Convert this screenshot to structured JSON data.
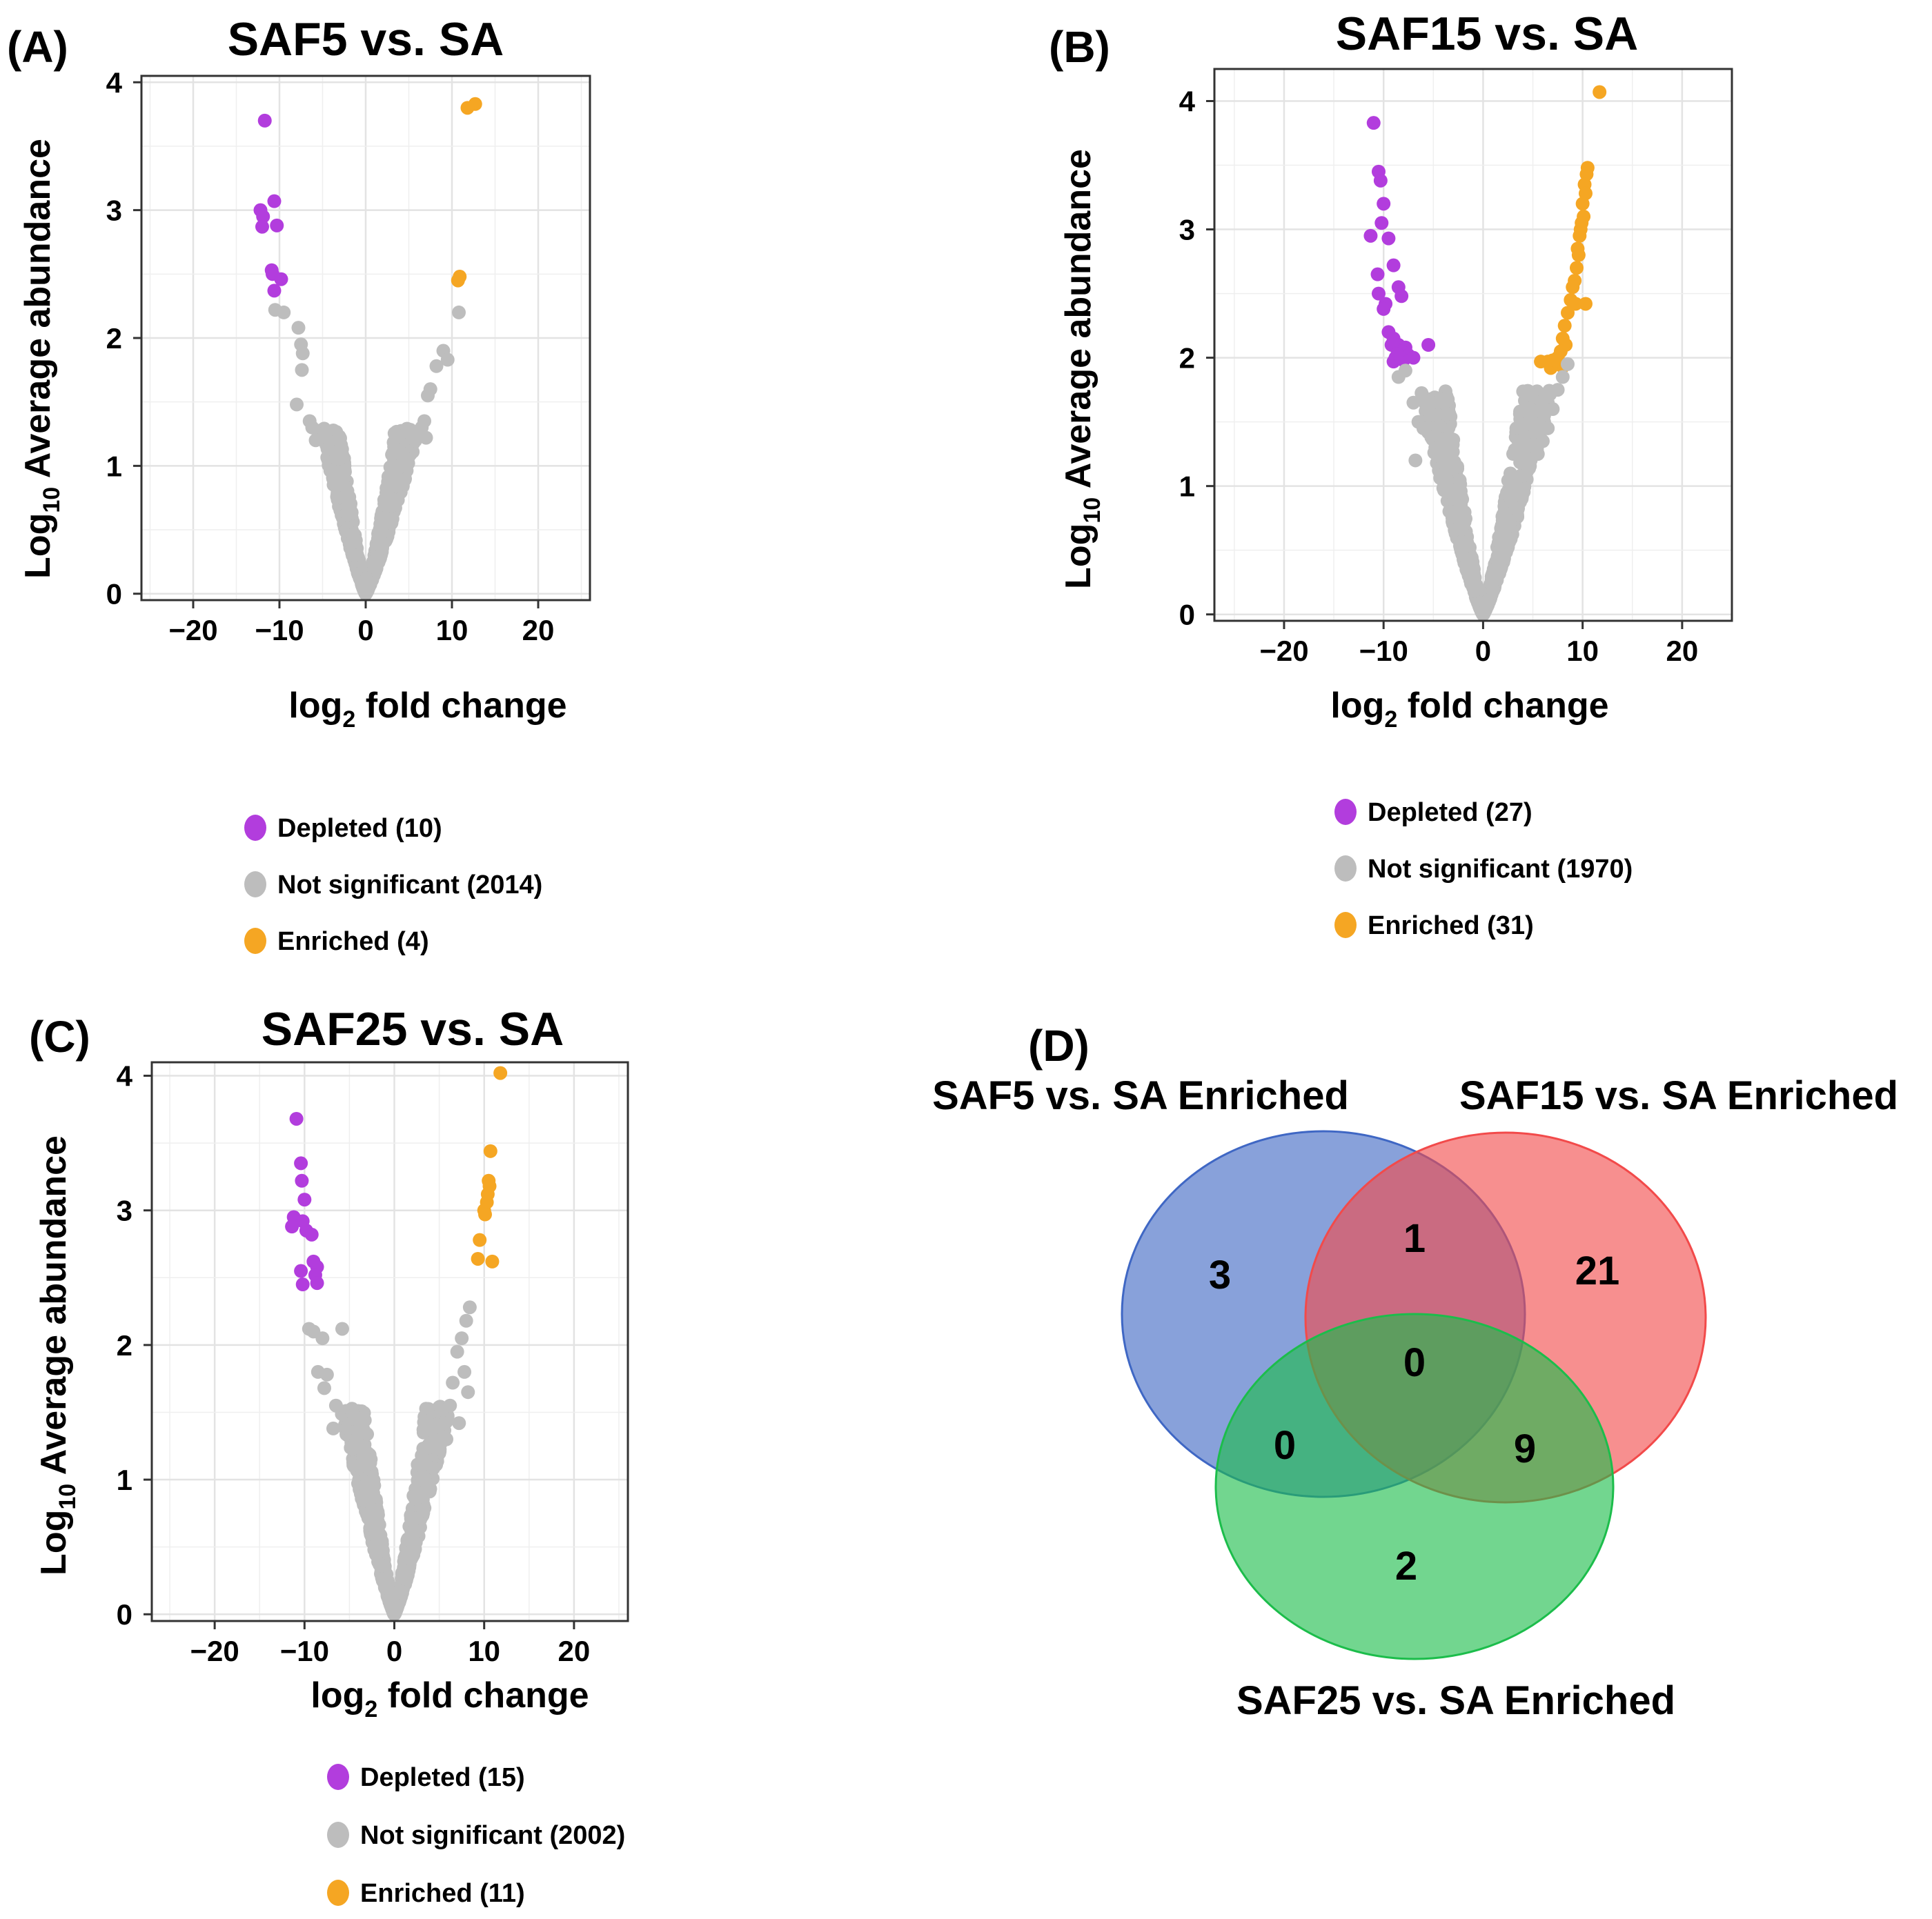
{
  "colors": {
    "depleted": "#b23ddd",
    "not_significant": "#bdbdbd",
    "enriched": "#f5a623",
    "venn_a": "#3f67c4",
    "venn_b": "#f24a4a",
    "venn_c": "#1cbd4b"
  },
  "chart_data": [
    {
      "type": "scatter",
      "panel": "(A)",
      "title": "SAF5 vs. SA",
      "xlabel": "log2 fold change",
      "ylabel": "Log10 Average abundance",
      "xlabel_parts": {
        "pre": "log",
        "sub": "2",
        "post": " fold change"
      },
      "ylabel_parts": {
        "pre": "Log",
        "sub": "10",
        "post": " Average abundance"
      },
      "xlim": [
        -26,
        26
      ],
      "ylim": [
        -0.05,
        4.05
      ],
      "xticks": [
        -20,
        -10,
        0,
        10,
        20
      ],
      "yticks": [
        0,
        1,
        2,
        3,
        4
      ],
      "xtick_labels": [
        "−20",
        "−10",
        "0",
        "10",
        "20"
      ],
      "ytick_labels": [
        "0",
        "1",
        "2",
        "3",
        "4"
      ],
      "grid": true,
      "legend": [
        {
          "label": "Depleted  (10)",
          "category": "depleted"
        },
        {
          "label": "Not significant (2014)",
          "category": "not_significant"
        },
        {
          "label": "Enriched (4)",
          "category": "enriched"
        }
      ],
      "series": [
        {
          "name": "Depleted",
          "category": "depleted",
          "x": [
            -11.7,
            -12.2,
            -11.9,
            -10.6,
            -10.3,
            -12.0,
            -10.9,
            -10.8,
            -10.6,
            -9.8
          ],
          "y": [
            3.7,
            3.0,
            2.95,
            3.07,
            2.88,
            2.87,
            2.53,
            2.5,
            2.37,
            2.46
          ]
        },
        {
          "name": "Enriched",
          "category": "enriched",
          "x": [
            12.7,
            11.8,
            10.9,
            10.7
          ],
          "y": [
            3.83,
            3.8,
            2.48,
            2.45
          ]
        },
        {
          "name": "Not significant",
          "category": "not_significant",
          "envelope": {
            "left_k": 4.3,
            "right_k": 5.0,
            "y_top": 1.3,
            "count": 2014
          },
          "x": [
            -10.5,
            -9.5,
            -7.8,
            -7.5,
            -7.3,
            -7.4,
            -8.0,
            -6.5,
            -6.2,
            -5.8,
            10.8,
            9.0,
            9.5,
            8.2,
            7.5,
            7.2,
            6.8,
            6.5,
            7.0
          ],
          "y": [
            2.22,
            2.2,
            2.08,
            1.95,
            1.88,
            1.75,
            1.48,
            1.35,
            1.3,
            1.2,
            2.2,
            1.9,
            1.83,
            1.78,
            1.6,
            1.55,
            1.35,
            1.3,
            1.22
          ]
        }
      ]
    },
    {
      "type": "scatter",
      "panel": "(B)",
      "title": "SAF15 vs. SA",
      "xlabel": "log2 fold change",
      "ylabel": "Log10 Average abundance",
      "xlabel_parts": {
        "pre": "log",
        "sub": "2",
        "post": " fold change"
      },
      "ylabel_parts": {
        "pre": "Log",
        "sub": "10",
        "post": " Average abundance"
      },
      "xlim": [
        -27,
        25
      ],
      "ylim": [
        -0.05,
        4.25
      ],
      "xticks": [
        -20,
        -10,
        0,
        10,
        20
      ],
      "yticks": [
        0,
        1,
        2,
        3,
        4
      ],
      "xtick_labels": [
        "−20",
        "−10",
        "0",
        "10",
        "20"
      ],
      "ytick_labels": [
        "0",
        "1",
        "2",
        "3",
        "4"
      ],
      "grid": true,
      "legend": [
        {
          "label": "Depleted  (27)",
          "category": "depleted"
        },
        {
          "label": "Not significant (1970)",
          "category": "not_significant"
        },
        {
          "label": "Enriched (31)",
          "category": "enriched"
        }
      ],
      "series": [
        {
          "name": "Depleted",
          "category": "depleted",
          "x": [
            -11.0,
            -10.5,
            -10.3,
            -10.0,
            -10.2,
            -11.3,
            -9.5,
            -10.6,
            -9.0,
            -8.5,
            -8.2,
            -10.5,
            -9.8,
            -10.0,
            -9.5,
            -9.0,
            -8.5,
            -7.8,
            -8.2,
            -9.2,
            -8.8,
            -7.5,
            -5.5,
            -9.0,
            -8.0,
            -7.0,
            -8.6
          ],
          "y": [
            3.83,
            3.45,
            3.38,
            3.2,
            3.05,
            2.95,
            2.93,
            2.65,
            2.72,
            2.55,
            2.48,
            2.5,
            2.42,
            2.38,
            2.2,
            2.15,
            2.1,
            2.08,
            2.05,
            2.1,
            2.0,
            2.02,
            2.1,
            1.97,
            1.98,
            2.0,
            2.03
          ],
          "_note": "approximate readings"
        },
        {
          "name": "Enriched",
          "category": "enriched",
          "x": [
            11.7,
            10.5,
            10.4,
            10.2,
            10.3,
            10.0,
            10.1,
            9.9,
            9.8,
            9.7,
            9.5,
            9.6,
            9.4,
            9.2,
            9.0,
            8.8,
            9.3,
            8.5,
            8.2,
            8.0,
            10.3,
            8.3,
            7.8,
            7.5,
            7.0,
            6.5,
            5.8,
            7.5,
            8.0,
            6.8,
            7.2
          ],
          "y": [
            4.07,
            3.48,
            3.43,
            3.35,
            3.28,
            3.2,
            3.1,
            3.05,
            3.0,
            2.95,
            2.85,
            2.8,
            2.7,
            2.6,
            2.55,
            2.45,
            2.42,
            2.35,
            2.25,
            2.15,
            2.42,
            2.1,
            2.05,
            2.0,
            1.98,
            1.97,
            1.97,
            1.95,
            1.93,
            1.92,
            1.98
          ]
        },
        {
          "name": "Not significant",
          "category": "not_significant",
          "envelope": {
            "left_k": 4.1,
            "right_k": 4.4,
            "y_top": 1.75,
            "count": 1970
          },
          "x": [
            -8.5,
            -7.8,
            -7.0,
            -6.5,
            -6.0,
            -5.2,
            -4.8,
            -6.8,
            8.5,
            8.0,
            7.5,
            7.0,
            6.5,
            6.0,
            5.5
          ],
          "y": [
            1.85,
            1.9,
            1.65,
            1.5,
            1.45,
            1.38,
            1.3,
            1.2,
            1.95,
            1.85,
            1.75,
            1.6,
            1.45,
            1.35,
            1.25
          ]
        }
      ]
    },
    {
      "type": "scatter",
      "panel": "(C)",
      "title": "SAF25 vs. SA",
      "xlabel": "log2 fold change",
      "ylabel": "Log10 Average abundance",
      "xlabel_parts": {
        "pre": "log",
        "sub": "2",
        "post": " fold change"
      },
      "ylabel_parts": {
        "pre": "Log",
        "sub": "10",
        "post": " Average abundance"
      },
      "xlim": [
        -27,
        26
      ],
      "ylim": [
        -0.05,
        4.1
      ],
      "xticks": [
        -20,
        -10,
        0,
        10,
        20
      ],
      "yticks": [
        0,
        1,
        2,
        3,
        4
      ],
      "xtick_labels": [
        "−20",
        "−10",
        "0",
        "10",
        "20"
      ],
      "ytick_labels": [
        "0",
        "1",
        "2",
        "3",
        "4"
      ],
      "grid": true,
      "legend": [
        {
          "label": "Depleted  (15)",
          "category": "depleted"
        },
        {
          "label": "Not significant (2002)",
          "category": "not_significant"
        },
        {
          "label": "Enriched (11)",
          "category": "enriched"
        }
      ],
      "series": [
        {
          "name": "Depleted",
          "category": "depleted",
          "x": [
            -10.9,
            -10.4,
            -10.3,
            -10.0,
            -11.2,
            -10.2,
            -9.8,
            -11.4,
            -9.2,
            -9.0,
            -8.6,
            -8.8,
            -10.4,
            -10.2,
            -8.6
          ],
          "y": [
            3.68,
            3.35,
            3.22,
            3.08,
            2.95,
            2.92,
            2.85,
            2.88,
            2.82,
            2.62,
            2.58,
            2.52,
            2.55,
            2.45,
            2.46
          ],
          "_note": "approximate readings"
        },
        {
          "name": "Enriched",
          "category": "enriched",
          "x": [
            11.8,
            10.7,
            10.5,
            10.6,
            10.4,
            10.3,
            10.0,
            10.1,
            9.5,
            9.3,
            10.9
          ],
          "y": [
            4.02,
            3.44,
            3.22,
            3.18,
            3.12,
            3.06,
            3.0,
            2.97,
            2.78,
            2.64,
            2.62
          ]
        },
        {
          "name": "Not significant",
          "category": "not_significant",
          "envelope": {
            "left_k": 4.2,
            "right_k": 4.3,
            "y_top": 1.55,
            "count": 2002
          },
          "x": [
            -9.5,
            -9.0,
            -8.0,
            -8.5,
            -7.5,
            -7.8,
            -5.8,
            -5.0,
            -6.5,
            -6.8,
            -4.5,
            -4.2,
            -3.5,
            -3.8,
            -3.0,
            8.4,
            8.0,
            7.5,
            7.0,
            7.8,
            6.5,
            6.2,
            8.2,
            7.2,
            5.8
          ],
          "y": [
            2.12,
            2.1,
            2.05,
            1.8,
            1.78,
            1.68,
            2.12,
            1.45,
            1.55,
            1.38,
            1.48,
            1.3,
            1.2,
            1.1,
            0.98,
            2.28,
            2.18,
            2.05,
            1.95,
            1.8,
            1.72,
            1.55,
            1.65,
            1.42,
            1.3
          ]
        }
      ]
    }
  ],
  "venn": {
    "panel": "(D)",
    "sets": [
      {
        "label": "SAF5 vs. SA Enriched",
        "color_key": "venn_a"
      },
      {
        "label": "SAF15 vs. SA Enriched",
        "color_key": "venn_b"
      },
      {
        "label": "SAF25 vs. SA Enriched",
        "color_key": "venn_c"
      }
    ],
    "regions": {
      "a_only": "3",
      "a_b": "1",
      "b_only": "21",
      "a_b_c": "0",
      "a_c": "0",
      "b_c": "9",
      "c_only": "2"
    }
  }
}
